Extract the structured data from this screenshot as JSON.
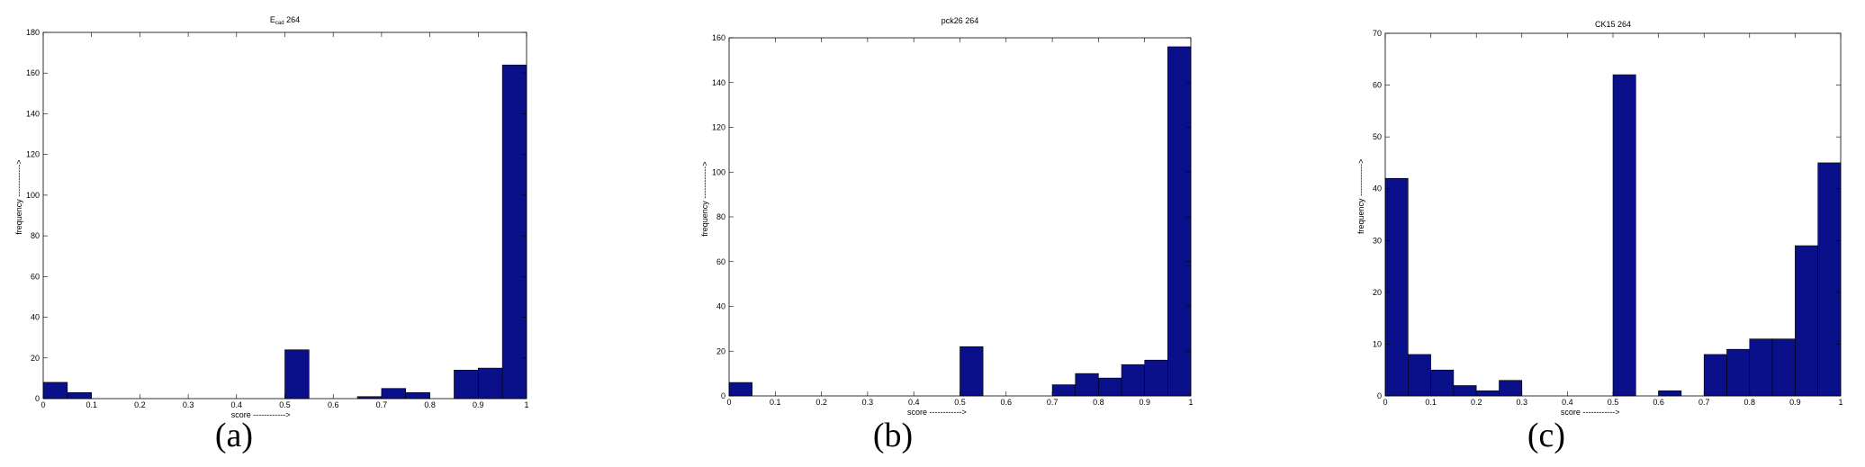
{
  "chart_data": [
    {
      "type": "bar",
      "title": "E_cad 264",
      "title_main": "E",
      "title_sub": "cad",
      "title_rest": " 264",
      "xlabel": "score ------------>",
      "ylabel": "frequency ------------>",
      "xlim": [
        0,
        1
      ],
      "ylim": [
        0,
        180
      ],
      "xticks": [
        0,
        0.1,
        0.2,
        0.3,
        0.4,
        0.5,
        0.6,
        0.7,
        0.8,
        0.9,
        1
      ],
      "xtick_labels": [
        "0",
        "0.1",
        "0.2",
        "0.3",
        "0.4",
        "0.5",
        "0.6",
        "0.7",
        "0.8",
        "0.9",
        "1"
      ],
      "yticks": [
        0,
        20,
        40,
        60,
        80,
        100,
        120,
        140,
        160,
        180
      ],
      "ytick_labels": [
        "0",
        "20",
        "40",
        "60",
        "80",
        "100",
        "120",
        "140",
        "160",
        "180"
      ],
      "bin_width": 0.05,
      "bins": [
        0,
        0.05,
        0.1,
        0.15,
        0.2,
        0.25,
        0.3,
        0.35,
        0.4,
        0.45,
        0.5,
        0.55,
        0.6,
        0.65,
        0.7,
        0.75,
        0.8,
        0.85,
        0.9,
        0.95
      ],
      "values": [
        8,
        3,
        0,
        0,
        0,
        0,
        0,
        0,
        0,
        0,
        24,
        0,
        0,
        1,
        5,
        3,
        0,
        14,
        15,
        164
      ],
      "bar_color": "#0a0f8a",
      "caption": "(a)"
    },
    {
      "type": "bar",
      "title": "pck26 264",
      "xlabel": "score ------------>",
      "ylabel": "frequency ------------>",
      "xlim": [
        0,
        1
      ],
      "ylim": [
        0,
        160
      ],
      "xticks": [
        0,
        0.1,
        0.2,
        0.3,
        0.4,
        0.5,
        0.6,
        0.7,
        0.8,
        0.9,
        1
      ],
      "xtick_labels": [
        "0",
        "0.1",
        "0.2",
        "0.3",
        "0.4",
        "0.5",
        "0.6",
        "0.7",
        "0.8",
        "0.9",
        "1"
      ],
      "yticks": [
        0,
        20,
        40,
        60,
        80,
        100,
        120,
        140,
        160
      ],
      "ytick_labels": [
        "0",
        "20",
        "40",
        "60",
        "80",
        "100",
        "120",
        "140",
        "160"
      ],
      "bin_width": 0.05,
      "bins": [
        0,
        0.05,
        0.1,
        0.15,
        0.2,
        0.25,
        0.3,
        0.35,
        0.4,
        0.45,
        0.5,
        0.55,
        0.6,
        0.65,
        0.7,
        0.75,
        0.8,
        0.85,
        0.9,
        0.95
      ],
      "values": [
        6,
        0,
        0,
        0,
        0,
        0,
        0,
        0,
        0,
        0,
        22,
        0,
        0,
        0,
        5,
        10,
        8,
        14,
        16,
        156
      ],
      "bar_color": "#0a0f8a",
      "caption": "(b)"
    },
    {
      "type": "bar",
      "title": "CK15 264",
      "xlabel": "score ------------>",
      "ylabel": "frequency ------------>",
      "xlim": [
        0,
        1
      ],
      "ylim": [
        0,
        70
      ],
      "xticks": [
        0,
        0.1,
        0.2,
        0.3,
        0.4,
        0.5,
        0.6,
        0.7,
        0.8,
        0.9,
        1
      ],
      "xtick_labels": [
        "0",
        "0.1",
        "0.2",
        "0.3",
        "0.4",
        "0.5",
        "0.6",
        "0.7",
        "0.8",
        "0.9",
        "1"
      ],
      "yticks": [
        0,
        10,
        20,
        30,
        40,
        50,
        60,
        70
      ],
      "ytick_labels": [
        "0",
        "10",
        "20",
        "30",
        "40",
        "50",
        "60",
        "70"
      ],
      "bin_width": 0.05,
      "bins": [
        0,
        0.05,
        0.1,
        0.15,
        0.2,
        0.25,
        0.3,
        0.35,
        0.4,
        0.45,
        0.5,
        0.55,
        0.6,
        0.65,
        0.7,
        0.75,
        0.8,
        0.85,
        0.9,
        0.95
      ],
      "values": [
        42,
        8,
        5,
        2,
        1,
        3,
        0,
        0,
        0,
        0,
        62,
        0,
        1,
        0,
        8,
        9,
        11,
        11,
        29,
        45
      ],
      "bar_color": "#0a0f8a",
      "caption": "(c)"
    }
  ]
}
